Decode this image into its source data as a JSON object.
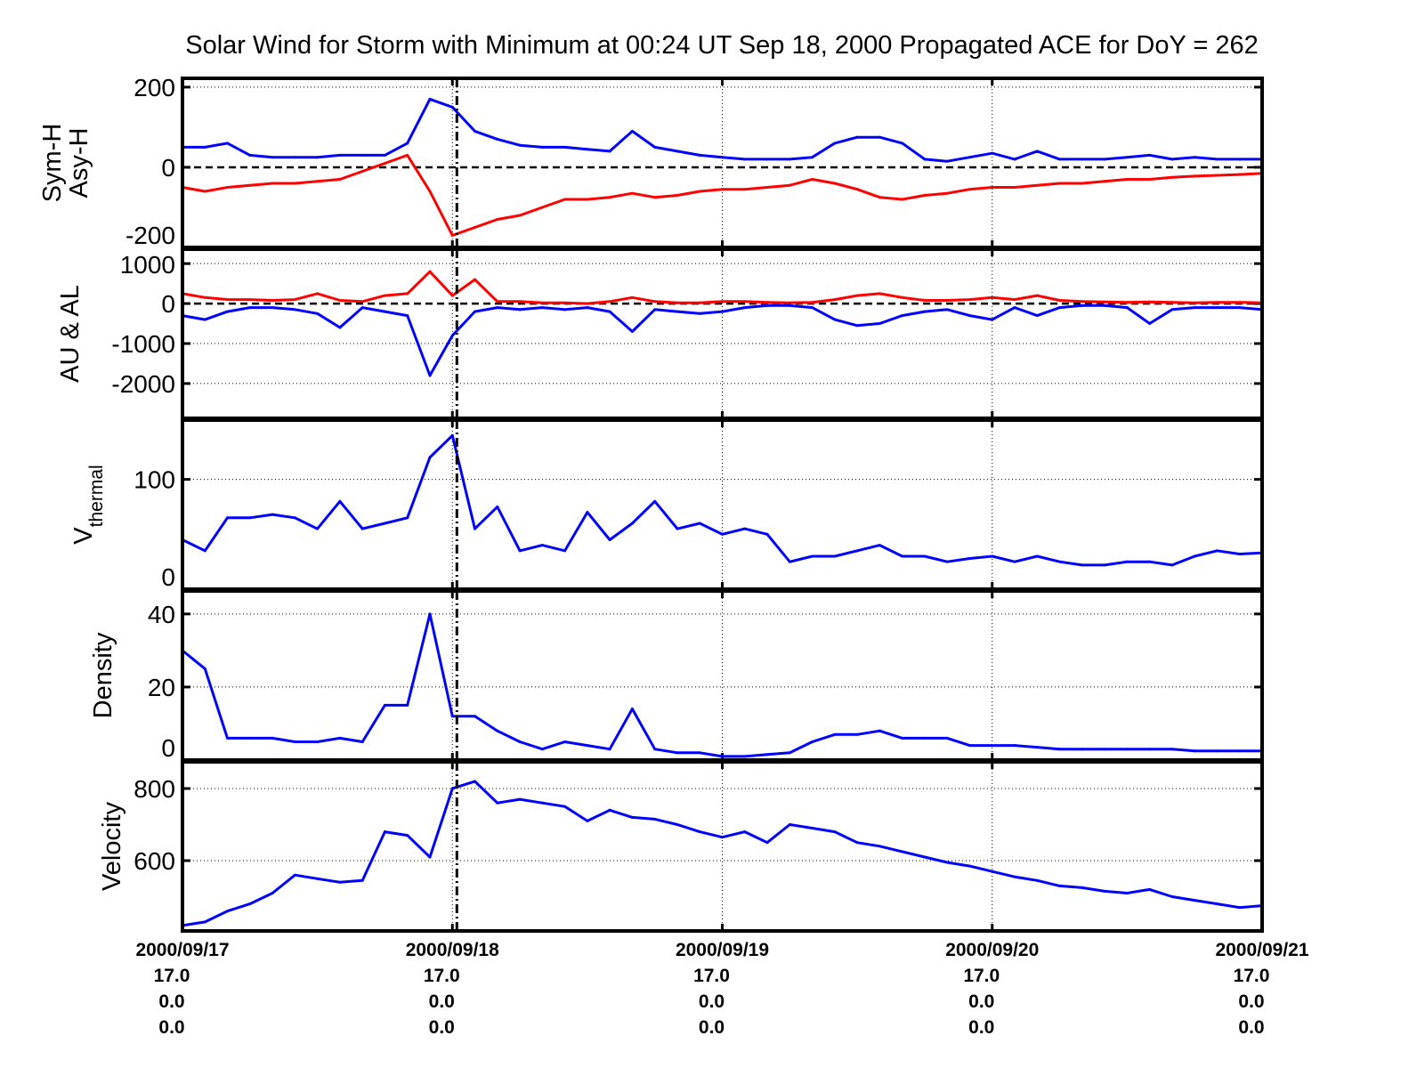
{
  "title": "Solar Wind for Storm with Minimum at 00:24 UT Sep 18, 2000  Propagated ACE for DoY = 262",
  "chart_data": [
    {
      "type": "line",
      "ylabel_lines": [
        "Sym-H",
        "Asy-H"
      ],
      "ylim": [
        -200,
        222
      ],
      "yticks": [
        200,
        0,
        -200
      ],
      "ytick_labels": [
        "200",
        "0",
        "-200"
      ],
      "zero_line": true,
      "series": [
        {
          "key": "asy_h",
          "color": "#0000ff",
          "values": [
            50,
            50,
            60,
            30,
            25,
            25,
            25,
            30,
            30,
            30,
            60,
            170,
            150,
            90,
            70,
            55,
            50,
            50,
            45,
            40,
            90,
            50,
            40,
            30,
            25,
            20,
            20,
            20,
            25,
            60,
            75,
            75,
            60,
            20,
            15,
            25,
            35,
            20,
            40,
            20,
            20,
            20,
            25,
            30,
            20,
            25,
            20,
            20,
            20
          ]
        },
        {
          "key": "sym_h",
          "color": "#ff0000",
          "values": [
            -50,
            -60,
            -50,
            -45,
            -40,
            -40,
            -35,
            -30,
            -10,
            10,
            30,
            -60,
            -170,
            -150,
            -130,
            -120,
            -100,
            -80,
            -80,
            -75,
            -65,
            -75,
            -70,
            -60,
            -55,
            -55,
            -50,
            -45,
            -30,
            -40,
            -55,
            -75,
            -80,
            -70,
            -65,
            -55,
            -50,
            -50,
            -45,
            -40,
            -40,
            -35,
            -30,
            -30,
            -25,
            -22,
            -20,
            -18,
            -15
          ]
        }
      ]
    },
    {
      "type": "line",
      "ylabel_lines": [
        "AU & AL"
      ],
      "ylim": [
        -2870,
        1360
      ],
      "yticks": [
        1000,
        0,
        -1000,
        -2000
      ],
      "ytick_labels": [
        "1000",
        "0",
        "-1000",
        "-2000"
      ],
      "zero_line": true,
      "series": [
        {
          "key": "au",
          "color": "#ff0000",
          "values": [
            250,
            150,
            100,
            100,
            80,
            100,
            250,
            80,
            50,
            200,
            250,
            800,
            200,
            600,
            50,
            50,
            20,
            20,
            0,
            50,
            150,
            50,
            20,
            20,
            50,
            50,
            30,
            20,
            30,
            100,
            200,
            250,
            150,
            80,
            80,
            100,
            150,
            100,
            200,
            80,
            50,
            40,
            30,
            40,
            30,
            20,
            30,
            30,
            20
          ]
        },
        {
          "key": "al",
          "color": "#0000ff",
          "values": [
            -300,
            -400,
            -200,
            -100,
            -100,
            -150,
            -250,
            -600,
            -100,
            -200,
            -300,
            -1800,
            -800,
            -200,
            -100,
            -150,
            -100,
            -150,
            -100,
            -200,
            -700,
            -150,
            -200,
            -250,
            -200,
            -100,
            -50,
            -50,
            -100,
            -400,
            -550,
            -500,
            -300,
            -200,
            -150,
            -300,
            -400,
            -100,
            -300,
            -100,
            -50,
            -50,
            -100,
            -500,
            -150,
            -100,
            -100,
            -100,
            -150
          ]
        }
      ]
    },
    {
      "type": "line",
      "ylabel_main": "V",
      "ylabel_sub": "thermal",
      "ylim": [
        0,
        154
      ],
      "yticks": [
        100,
        0
      ],
      "ytick_labels": [
        "100",
        "0"
      ],
      "zero_line": false,
      "series": [
        {
          "key": "vthermal",
          "color": "#0000ff",
          "values": [
            45,
            35,
            65,
            65,
            68,
            65,
            55,
            80,
            55,
            60,
            65,
            120,
            140,
            55,
            75,
            35,
            40,
            35,
            70,
            45,
            60,
            80,
            55,
            60,
            50,
            55,
            50,
            25,
            30,
            30,
            35,
            40,
            30,
            30,
            25,
            28,
            30,
            25,
            30,
            25,
            22,
            22,
            25,
            25,
            22,
            30,
            35,
            32,
            33
          ]
        }
      ]
    },
    {
      "type": "line",
      "ylabel_lines": [
        "Density"
      ],
      "ylim": [
        0,
        46.3
      ],
      "yticks": [
        40,
        20,
        0
      ],
      "ytick_labels": [
        "40",
        "20",
        "0"
      ],
      "zero_line": false,
      "series": [
        {
          "key": "density",
          "color": "#0000ff",
          "values": [
            30,
            25,
            6,
            6,
            6,
            5,
            5,
            6,
            5,
            15,
            15,
            40,
            12,
            12,
            8,
            5,
            3,
            5,
            4,
            3,
            14,
            3,
            2,
            2,
            1,
            1,
            1.5,
            2,
            5,
            7,
            7,
            8,
            6,
            6,
            6,
            4,
            4,
            4,
            3.5,
            3,
            3,
            3,
            3,
            3,
            3,
            2.5,
            2.5,
            2.5,
            2.5
          ]
        }
      ]
    },
    {
      "type": "line",
      "ylabel_lines": [
        "Velocity"
      ],
      "ylim": [
        405,
        874
      ],
      "yticks": [
        800,
        600
      ],
      "ytick_labels": [
        "800",
        "600"
      ],
      "zero_line": false,
      "series": [
        {
          "key": "velocity",
          "color": "#0000ff",
          "values": [
            420,
            430,
            460,
            480,
            510,
            560,
            550,
            540,
            545,
            680,
            670,
            610,
            800,
            820,
            760,
            770,
            760,
            750,
            710,
            740,
            720,
            715,
            700,
            680,
            665,
            680,
            650,
            700,
            690,
            680,
            650,
            640,
            625,
            610,
            595,
            585,
            570,
            555,
            545,
            530,
            525,
            515,
            510,
            520,
            500,
            490,
            480,
            470,
            475
          ]
        }
      ]
    }
  ],
  "x": [
    "2000/09/17 00:00",
    "02:00",
    "04:00",
    "06:00",
    "08:00",
    "10:00",
    "12:00",
    "14:00",
    "16:00",
    "18:00",
    "20:00",
    "22:00",
    "2000/09/18 00:00",
    "02:00",
    "04:00",
    "06:00",
    "08:00",
    "10:00",
    "12:00",
    "14:00",
    "16:00",
    "18:00",
    "20:00",
    "22:00",
    "2000/09/19 00:00",
    "02:00",
    "04:00",
    "06:00",
    "08:00",
    "10:00",
    "12:00",
    "14:00",
    "16:00",
    "18:00",
    "20:00",
    "22:00",
    "2000/09/20 00:00",
    "02:00",
    "04:00",
    "06:00",
    "08:00",
    "10:00",
    "12:00",
    "14:00",
    "16:00",
    "18:00",
    "20:00",
    "22:00",
    "2000/09/21 00:00"
  ],
  "xlim": [
    "2000/09/17 00:00",
    "2000/09/21 00:00"
  ],
  "event_marker": "2000/09/18 00:24",
  "xticks": [
    {
      "lines": [
        "2000/09/17",
        "17.0",
        "0.0",
        "0.0"
      ]
    },
    {
      "lines": [
        "2000/09/18",
        "17.0",
        "0.0",
        "0.0"
      ]
    },
    {
      "lines": [
        "2000/09/19",
        "17.0",
        "0.0",
        "0.0"
      ]
    },
    {
      "lines": [
        "2000/09/20",
        "17.0",
        "0.0",
        "0.0"
      ]
    },
    {
      "lines": [
        "2000/09/21",
        "17.0",
        "0.0",
        "0.0"
      ]
    }
  ],
  "grid": true
}
